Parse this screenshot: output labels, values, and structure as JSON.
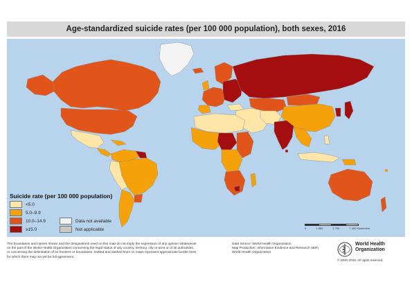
{
  "title": "Age-standardized suicide rates (per 100 000 population), both sexes, 2016",
  "legend": {
    "title": "Suicide rate (per 100 000 population)",
    "items": [
      {
        "label": "<5.0",
        "color": "#fde6a8"
      },
      {
        "label": "5.0–9.9",
        "color": "#f5a10a"
      },
      {
        "label": "10.0–14.9",
        "color": "#e2551a"
      },
      {
        "label": "≥15.0",
        "color": "#a40e0e"
      },
      {
        "label": "Data not available",
        "color": "#f3f3f3"
      },
      {
        "label": "Not applicable",
        "color": "#c8c8c8"
      }
    ]
  },
  "scale": [
    "0",
    "1 850",
    "3 700",
    "7 400 Kilometers"
  ],
  "disclaimer": [
    "The boundaries and names shown and the designations used on this map do not imply the expression of any opinion whatsoever",
    "on the part of the World Health Organization concerning the legal status of any country, territory, city or area or of its authorities,",
    "or concerning the delimitation of its frontiers or boundaries. Dotted and dashed lines on maps represent approximate border lines",
    "for which there may not yet be full agreement."
  ],
  "source": [
    "Data Source: World Health Organization",
    "Map Production: Information Evidence and Research (IER)",
    "World Health Organization"
  ],
  "logo_text": [
    "World Health",
    "Organization"
  ],
  "copyright": "© WHO 2018. All rights reserved."
}
